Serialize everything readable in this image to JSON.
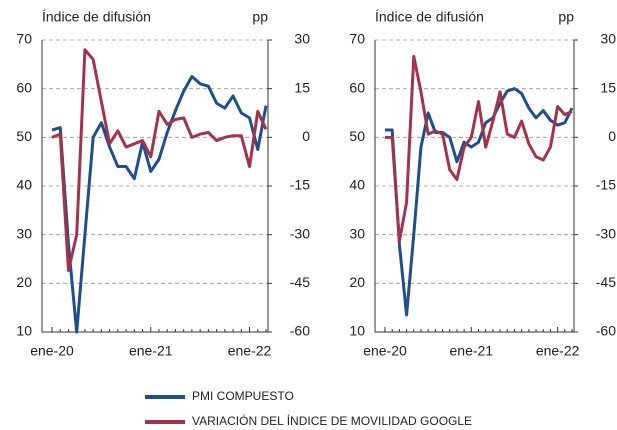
{
  "chart_data": [
    {
      "type": "line",
      "ylabel": "Índice de difusión",
      "y2label": "pp",
      "categories": [
        "ene-20",
        null,
        null,
        null,
        null,
        null,
        null,
        null,
        null,
        null,
        null,
        null,
        "ene-21",
        null,
        null,
        null,
        null,
        null,
        null,
        null,
        null,
        null,
        null,
        null,
        "ene-22",
        null,
        null
      ],
      "ylim": [
        10,
        70
      ],
      "yticks": [
        10,
        20,
        30,
        40,
        50,
        60,
        70
      ],
      "y2lim": [
        -60,
        30
      ],
      "y2ticks": [
        -60,
        -45,
        -30,
        -15,
        0,
        15,
        30
      ],
      "grid": true,
      "series": [
        {
          "name": "PMI COMPUESTO",
          "color": "#1f4e8c",
          "values": [
            51.5,
            52,
            28,
            10,
            30,
            50,
            53,
            48,
            44,
            44,
            41.5,
            49,
            43,
            45.5,
            51,
            55.5,
            59.5,
            62.5,
            61,
            60.5,
            57,
            56,
            58.5,
            55,
            54,
            47.5,
            56.5
          ]
        },
        {
          "name": "VARIACIÓN DEL ÍNDICE DE MOVILIDAD GOOGLE",
          "color": "#a3334a",
          "axis": "y2",
          "values": [
            0,
            1,
            -41,
            -30,
            27,
            24,
            11,
            -2,
            2,
            -3,
            -2,
            -1,
            -6,
            8,
            4,
            5.5,
            6,
            0,
            1,
            1.5,
            -1,
            0,
            0.5,
            0.5,
            -9,
            8,
            2.5
          ]
        }
      ]
    },
    {
      "type": "line",
      "ylabel": "Índice de difusión",
      "y2label": "pp",
      "categories": [
        "ene-20",
        null,
        null,
        null,
        null,
        null,
        null,
        null,
        null,
        null,
        null,
        null,
        "ene-21",
        null,
        null,
        null,
        null,
        null,
        null,
        null,
        null,
        null,
        null,
        null,
        "ene-22",
        null,
        null
      ],
      "ylim": [
        10,
        70
      ],
      "yticks": [
        10,
        20,
        30,
        40,
        50,
        60,
        70
      ],
      "y2lim": [
        -60,
        30
      ],
      "y2ticks": [
        -60,
        -45,
        -30,
        -15,
        0,
        15,
        30
      ],
      "grid": true,
      "series": [
        {
          "name": "PMI COMPUESTO",
          "color": "#1f4e8c",
          "values": [
            51.5,
            51.5,
            28,
            13.5,
            30,
            48,
            55,
            51,
            51,
            50,
            45,
            49,
            48,
            49,
            53,
            54,
            57,
            59.5,
            60,
            59,
            56,
            54,
            55.5,
            53.5,
            52.5,
            53,
            56
          ]
        },
        {
          "name": "VARIACIÓN DEL ÍNDICE DE MOVILIDAD GOOGLE",
          "color": "#a3334a",
          "axis": "y2",
          "values": [
            0,
            0,
            -32,
            -20,
            25,
            14,
            1,
            2,
            1,
            -10,
            -13,
            -3,
            0,
            11,
            -3,
            5,
            14,
            1,
            0,
            5,
            -2,
            -6,
            -7,
            -3,
            9.5,
            7,
            8
          ]
        }
      ]
    }
  ]
}
